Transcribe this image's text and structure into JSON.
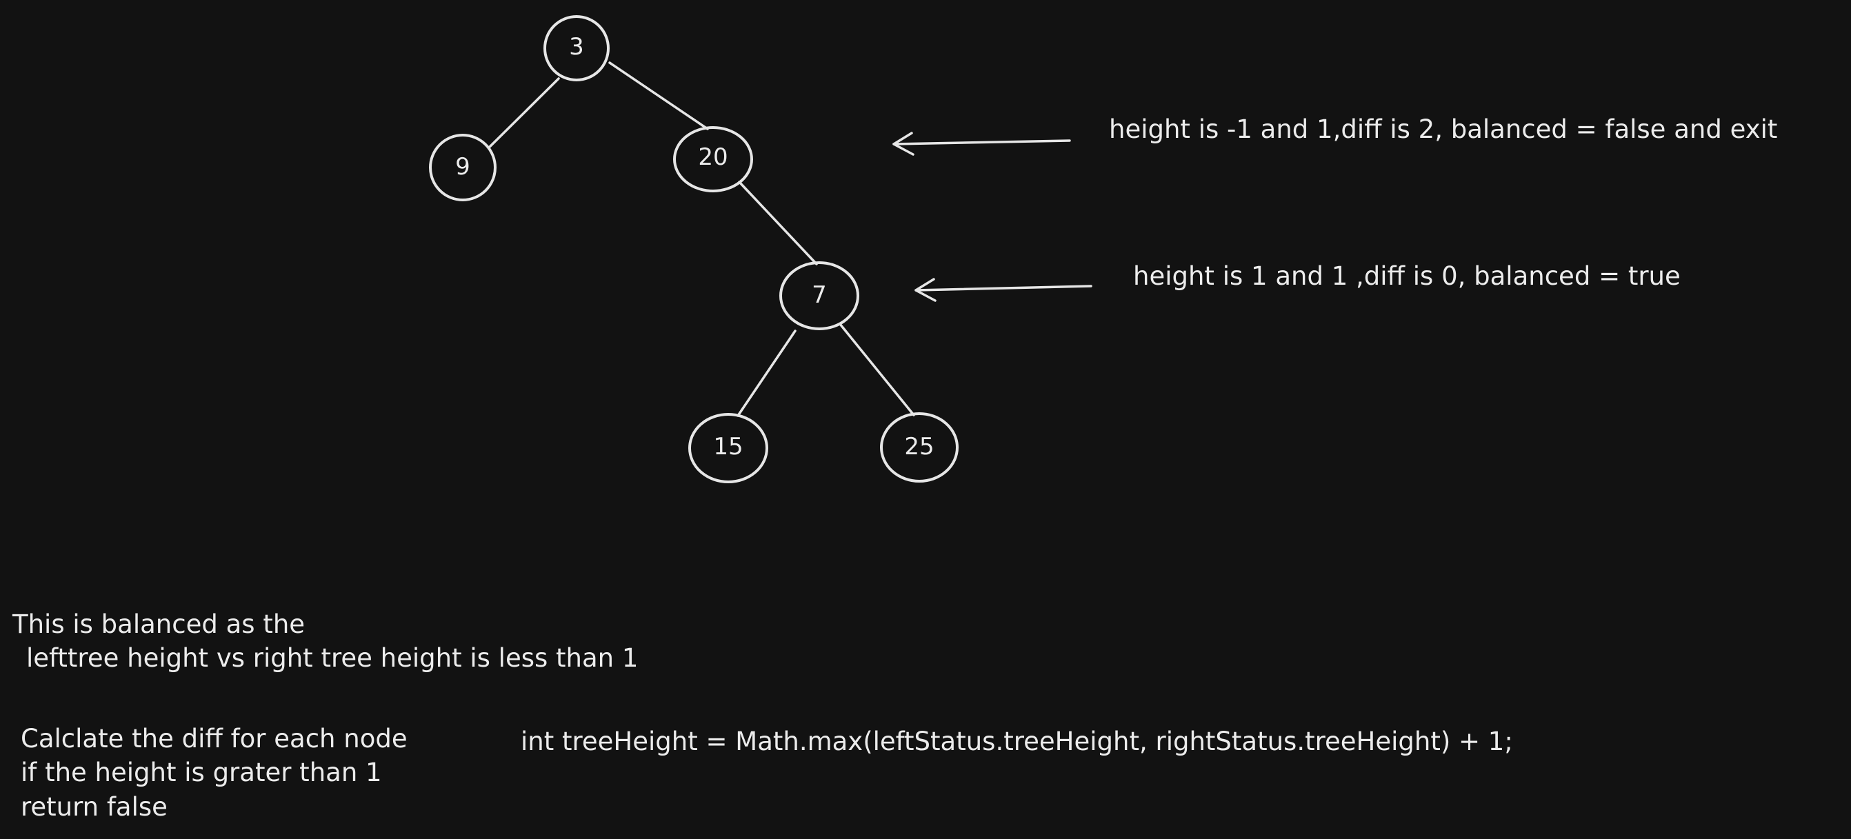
{
  "colors": {
    "background": "#121212",
    "stroke": "#e6e6e6",
    "text": "#ececec"
  },
  "tree": {
    "nodes": [
      {
        "id": "n3",
        "label": "3"
      },
      {
        "id": "n9",
        "label": "9"
      },
      {
        "id": "n20",
        "label": "20"
      },
      {
        "id": "n7",
        "label": "7"
      },
      {
        "id": "n15",
        "label": "15"
      },
      {
        "id": "n25",
        "label": "25"
      }
    ],
    "edges": [
      {
        "from": "n3",
        "to": "n9"
      },
      {
        "from": "n3",
        "to": "n20"
      },
      {
        "from": "n20",
        "to": "n7"
      },
      {
        "from": "n7",
        "to": "n15"
      },
      {
        "from": "n7",
        "to": "n25"
      }
    ]
  },
  "annotations": {
    "node20_note": "height is -1 and 1,diff is 2, balanced = false and exit",
    "node7_note": "height is 1 and 1 ,diff is 0, balanced = true"
  },
  "notes": {
    "balanced_line1": "This is balanced as the",
    "balanced_line2": "lefttree height vs right tree height is less than 1",
    "calc_line1": "Calclate the diff for each node",
    "calc_line2": "if the height is grater than 1",
    "calc_line3": "return false",
    "code": "int treeHeight = Math.max(leftStatus.treeHeight, rightStatus.treeHeight) + 1;"
  }
}
